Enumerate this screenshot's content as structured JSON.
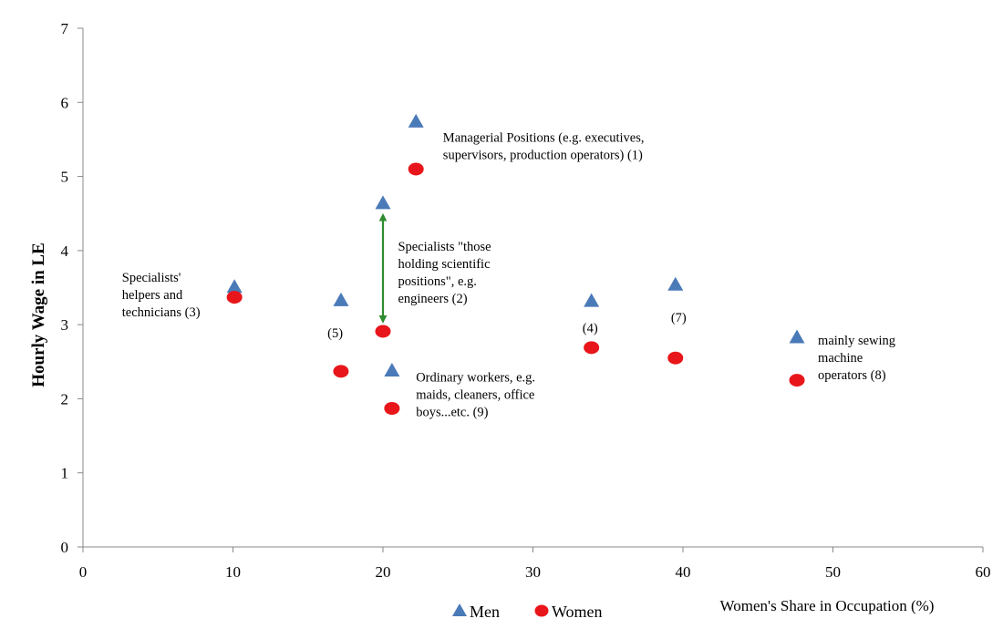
{
  "chart_data": {
    "type": "scatter",
    "xlabel": "Women's Share in Occupation (%)",
    "ylabel": "Hourly Wage in LE",
    "xlim": [
      0,
      60
    ],
    "ylim": [
      0,
      7
    ],
    "xticks": [
      "0",
      "10",
      "20",
      "30",
      "40",
      "50",
      "60"
    ],
    "yticks": [
      "0",
      "1",
      "2",
      "3",
      "4",
      "5",
      "6",
      "7"
    ],
    "grid": false,
    "legend_position": "bottom",
    "series": [
      {
        "name": "Men",
        "marker": "triangle",
        "color": "#4a7ab8",
        "points": [
          {
            "x": 10.1,
            "y": 3.5
          },
          {
            "x": 17.2,
            "y": 3.32
          },
          {
            "x": 20.0,
            "y": 4.63
          },
          {
            "x": 20.6,
            "y": 2.37
          },
          {
            "x": 22.2,
            "y": 5.73
          },
          {
            "x": 33.9,
            "y": 3.31
          },
          {
            "x": 39.5,
            "y": 3.53
          },
          {
            "x": 47.6,
            "y": 2.82
          }
        ]
      },
      {
        "name": "Women",
        "marker": "circle",
        "color": "#e8161a",
        "points": [
          {
            "x": 10.1,
            "y": 3.37
          },
          {
            "x": 17.2,
            "y": 2.37
          },
          {
            "x": 20.0,
            "y": 2.91
          },
          {
            "x": 20.6,
            "y": 1.87
          },
          {
            "x": 22.2,
            "y": 5.1
          },
          {
            "x": 33.9,
            "y": 2.69
          },
          {
            "x": 39.5,
            "y": 2.55
          },
          {
            "x": 47.6,
            "y": 2.25
          }
        ]
      }
    ],
    "annotations": [
      {
        "lines": [
          "Managerial Positions (e.g. executives,",
          "supervisors, production operators) (1)"
        ],
        "x": 24.0,
        "y": 5.47
      },
      {
        "lines": [
          "Specialists \"those",
          "holding scientific",
          "positions\", e.g.",
          "engineers (2)"
        ],
        "x": 21.0,
        "y": 4.0
      },
      {
        "lines": [
          "Specialists'",
          "helpers and",
          "technicians (3)"
        ],
        "x": 2.6,
        "y": 3.58
      },
      {
        "lines": [
          "(5)"
        ],
        "x": 16.3,
        "y": 2.83
      },
      {
        "lines": [
          "(4)"
        ],
        "x": 33.3,
        "y": 2.9
      },
      {
        "lines": [
          "(7)"
        ],
        "x": 39.2,
        "y": 3.04
      },
      {
        "lines": [
          "Ordinary workers, e.g.",
          "maids, cleaners, office",
          "boys...etc. (9)"
        ],
        "x": 22.2,
        "y": 2.23
      },
      {
        "lines": [
          "mainly sewing",
          "machine",
          "operators (8)"
        ],
        "x": 49.0,
        "y": 2.73
      }
    ],
    "arrow": {
      "x": 20.0,
      "y_from": 4.45,
      "y_to": 3.07,
      "color": "#2e8b2e"
    }
  }
}
